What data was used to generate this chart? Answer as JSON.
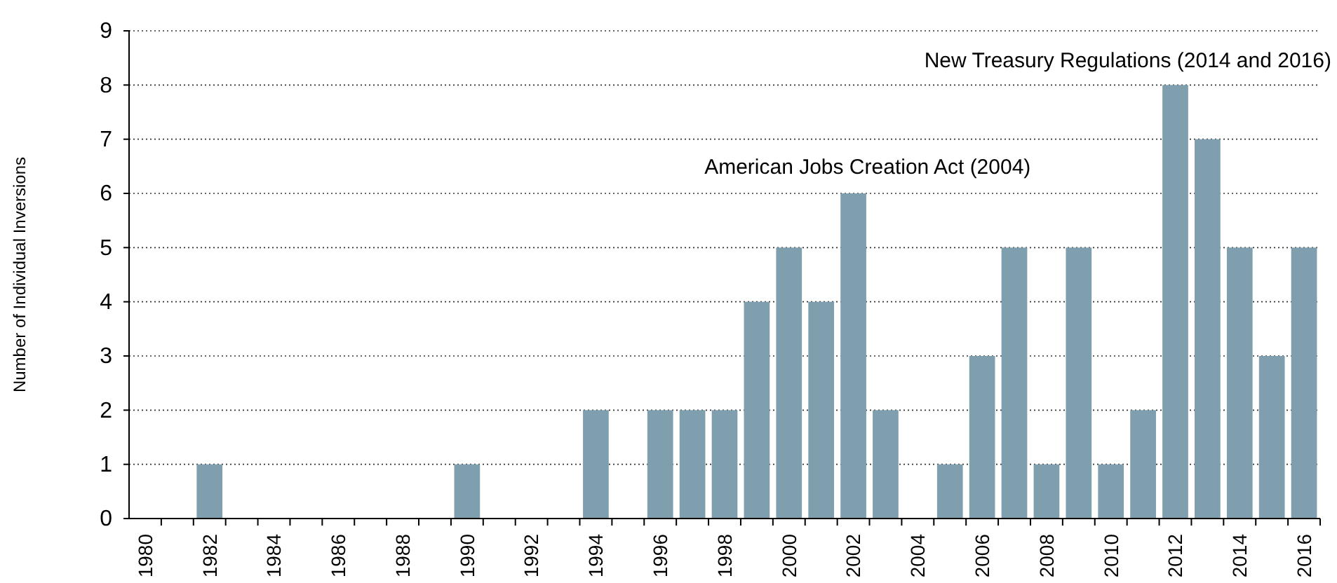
{
  "chart_data": {
    "type": "bar",
    "ylabel": "Number of Individual Inversions",
    "categories": [
      "1980",
      null,
      "1982",
      null,
      "1984",
      null,
      "1986",
      null,
      "1988",
      null,
      "1990",
      null,
      "1992",
      null,
      "1994",
      null,
      "1996",
      null,
      "1998",
      null,
      "2000",
      null,
      "2002",
      null,
      "2004",
      null,
      "2006",
      null,
      "2008",
      null,
      "2010",
      null,
      "2012",
      null,
      "2014",
      null,
      "2016"
    ],
    "values": [
      0,
      0,
      1,
      0,
      0,
      0,
      0,
      0,
      0,
      0,
      1,
      0,
      0,
      0,
      2,
      0,
      2,
      2,
      2,
      4,
      5,
      4,
      6,
      2,
      0,
      1,
      3,
      5,
      1,
      5,
      1,
      2,
      8,
      7,
      5,
      3,
      5
    ],
    "color": "#7f9fae",
    "ylim": [
      0,
      9
    ],
    "yticks": [
      0,
      1,
      2,
      3,
      4,
      5,
      6,
      7,
      8,
      9
    ],
    "grid": "y",
    "annotations": [
      "American Jobs Creation Act (2004)",
      "New Treasury Regulations (2014 and 2016)"
    ]
  }
}
